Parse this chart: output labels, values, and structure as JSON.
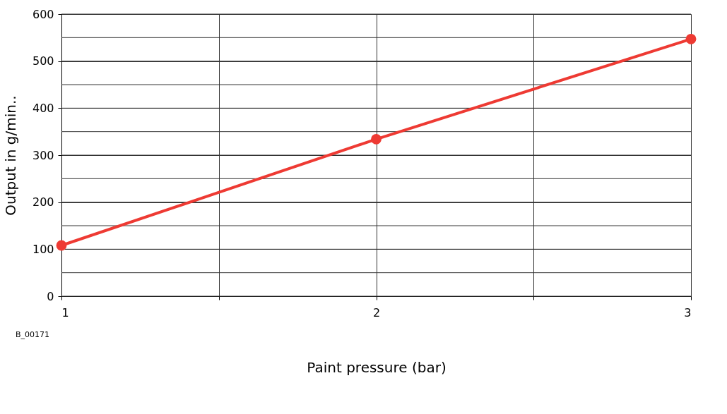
{
  "chart_data": {
    "type": "line",
    "xlabel": "Paint pressure (bar)",
    "ylabel": "Output in g/min..",
    "x": [
      1,
      2,
      3
    ],
    "series": [
      {
        "color": "#ee3a33",
        "values": [
          108,
          334,
          547
        ]
      }
    ],
    "xlim": [
      1,
      3
    ],
    "xticks": [
      1,
      {
        "value": 1.5,
        "label": null
      },
      2,
      {
        "value": 2.5,
        "label": null
      },
      3
    ],
    "ylim": [
      0,
      600
    ],
    "yticks": [
      0,
      {
        "value": 50,
        "label": null
      },
      100,
      {
        "value": 150,
        "label": null
      },
      200,
      {
        "value": 250,
        "label": null
      },
      300,
      {
        "value": 350,
        "label": null
      },
      400,
      {
        "value": 450,
        "label": null
      },
      500,
      {
        "value": 550,
        "label": null
      },
      600
    ],
    "grid": true,
    "marker": "circle",
    "line_style": "solid",
    "annotations": [
      "B_00171"
    ]
  }
}
